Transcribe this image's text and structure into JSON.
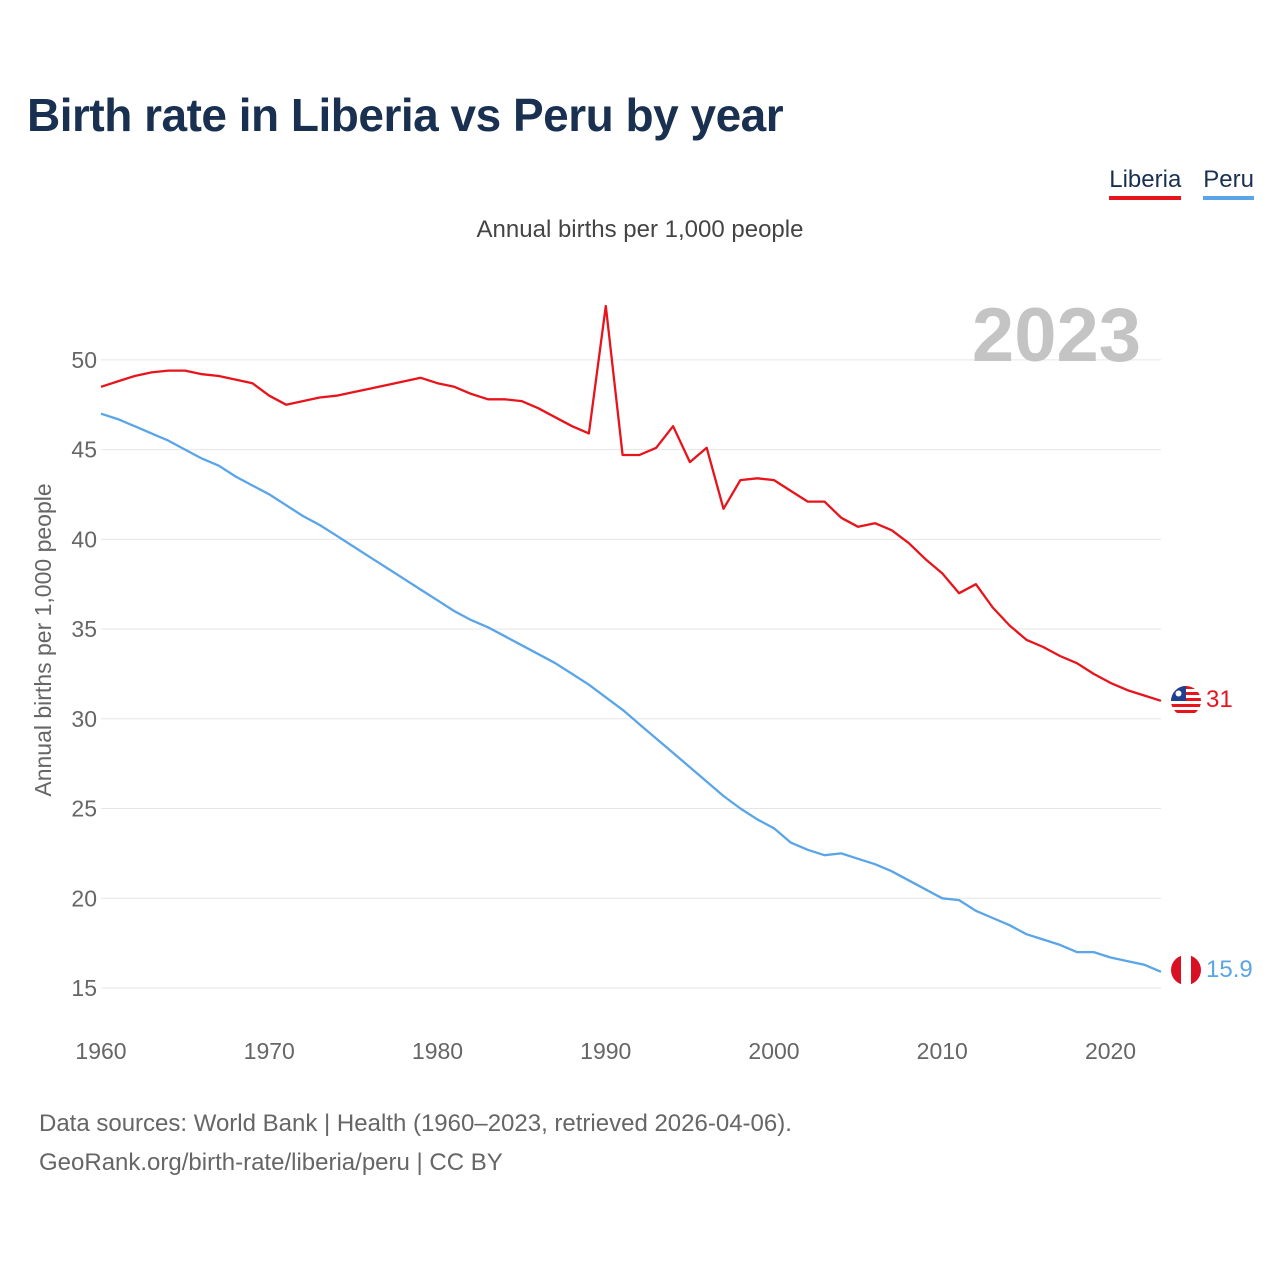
{
  "header": {
    "title": "Birth rate in Liberia vs Peru by year"
  },
  "legend": {
    "items": [
      "Liberia",
      "Peru"
    ]
  },
  "footer": {
    "line1": "Data sources: World Bank | Health (1960–2023, retrieved 2026-04-06).",
    "line2": "GeoRank.org/birth-rate/liberia/peru | CC BY"
  },
  "chart_data": {
    "type": "line",
    "title": "Birth rate in Liberia vs Peru by year",
    "subtitle": "Annual births per 1,000 people",
    "ylabel": "Annual births per 1,000 people",
    "xlabel": "",
    "year_label": "2023",
    "xlim": [
      1960,
      2023
    ],
    "ylim": [
      15,
      53
    ],
    "x_ticks": [
      1960,
      1970,
      1980,
      1990,
      2000,
      2010,
      2020
    ],
    "y_ticks": [
      15,
      20,
      25,
      30,
      35,
      40,
      45,
      50
    ],
    "grid": true,
    "legend_position": "top-right",
    "x": [
      1960,
      1961,
      1962,
      1963,
      1964,
      1965,
      1966,
      1967,
      1968,
      1969,
      1970,
      1971,
      1972,
      1973,
      1974,
      1975,
      1976,
      1977,
      1978,
      1979,
      1980,
      1981,
      1982,
      1983,
      1984,
      1985,
      1986,
      1987,
      1988,
      1989,
      1990,
      1991,
      1992,
      1993,
      1994,
      1995,
      1996,
      1997,
      1998,
      1999,
      2000,
      2001,
      2002,
      2003,
      2004,
      2005,
      2006,
      2007,
      2008,
      2009,
      2010,
      2011,
      2012,
      2013,
      2014,
      2015,
      2016,
      2017,
      2018,
      2019,
      2020,
      2021,
      2022,
      2023
    ],
    "series": [
      {
        "name": "Liberia",
        "color": "#e8141c",
        "end_label": "31",
        "values": [
          48.5,
          48.8,
          49.1,
          49.3,
          49.4,
          49.4,
          49.2,
          49.1,
          48.9,
          48.7,
          48.0,
          47.5,
          47.7,
          47.9,
          48.0,
          48.2,
          48.4,
          48.6,
          48.8,
          49.0,
          48.7,
          48.5,
          48.1,
          47.8,
          47.8,
          47.7,
          47.3,
          46.8,
          46.3,
          45.9,
          53.0,
          44.7,
          44.7,
          45.1,
          46.3,
          44.3,
          45.1,
          41.7,
          43.3,
          43.4,
          43.3,
          42.7,
          42.1,
          42.1,
          41.2,
          40.7,
          40.9,
          40.5,
          39.8,
          38.9,
          38.1,
          37.0,
          37.5,
          36.2,
          35.2,
          34.4,
          34.0,
          33.5,
          33.1,
          32.5,
          32.0,
          31.6,
          31.3,
          31.0
        ]
      },
      {
        "name": "Peru",
        "color": "#5aa5e8",
        "end_label": "15.9",
        "values": [
          47.0,
          46.7,
          46.3,
          45.9,
          45.5,
          45.0,
          44.5,
          44.1,
          43.5,
          43.0,
          42.5,
          41.9,
          41.3,
          40.8,
          40.2,
          39.6,
          39.0,
          38.4,
          37.8,
          37.2,
          36.6,
          36.0,
          35.5,
          35.1,
          34.6,
          34.1,
          33.6,
          33.1,
          32.5,
          31.9,
          31.2,
          30.5,
          29.7,
          28.9,
          28.1,
          27.3,
          26.5,
          25.7,
          25.0,
          24.4,
          23.9,
          23.1,
          22.7,
          22.4,
          22.5,
          22.2,
          21.9,
          21.5,
          21.0,
          20.5,
          20.0,
          19.9,
          19.3,
          18.9,
          18.5,
          18.0,
          17.7,
          17.4,
          17.0,
          17.0,
          16.7,
          16.5,
          16.3,
          15.9
        ]
      }
    ]
  }
}
